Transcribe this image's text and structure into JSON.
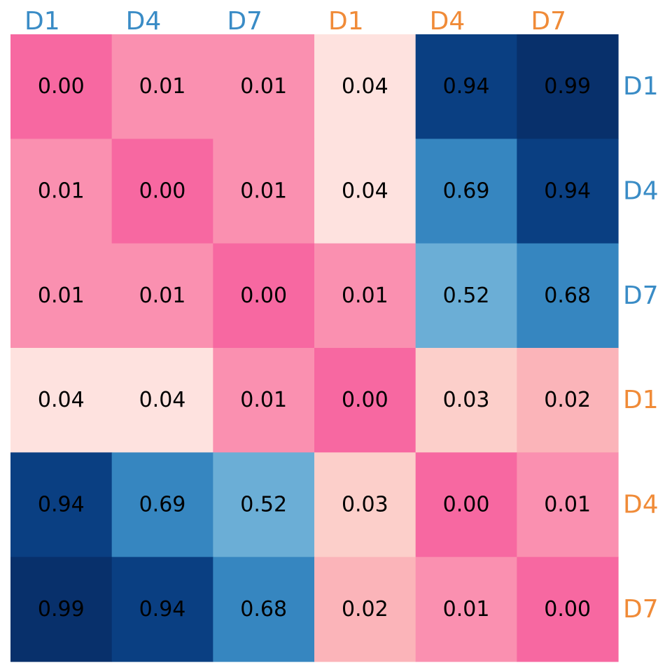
{
  "chart_data": {
    "type": "heatmap",
    "title": "",
    "xlabel": "",
    "ylabel": "",
    "col_labels": [
      {
        "text": "D1",
        "group": "blue"
      },
      {
        "text": "D4",
        "group": "blue"
      },
      {
        "text": "D7",
        "group": "blue"
      },
      {
        "text": "D1",
        "group": "orange"
      },
      {
        "text": "D4",
        "group": "orange"
      },
      {
        "text": "D7",
        "group": "orange"
      }
    ],
    "row_labels": [
      {
        "text": "D1",
        "group": "blue"
      },
      {
        "text": "D4",
        "group": "blue"
      },
      {
        "text": "D7",
        "group": "blue"
      },
      {
        "text": "D1",
        "group": "orange"
      },
      {
        "text": "D4",
        "group": "orange"
      },
      {
        "text": "D7",
        "group": "orange"
      }
    ],
    "group_colors": {
      "blue": "#3a8cc6",
      "orange": "#f08b38"
    },
    "values": [
      [
        "0.00",
        "0.01",
        "0.01",
        "0.04",
        "0.94",
        "0.99"
      ],
      [
        "0.01",
        "0.00",
        "0.01",
        "0.04",
        "0.69",
        "0.94"
      ],
      [
        "0.01",
        "0.01",
        "0.00",
        "0.01",
        "0.52",
        "0.68"
      ],
      [
        "0.04",
        "0.04",
        "0.01",
        "0.00",
        "0.03",
        "0.02"
      ],
      [
        "0.94",
        "0.69",
        "0.52",
        "0.03",
        "0.00",
        "0.01"
      ],
      [
        "0.99",
        "0.94",
        "0.68",
        "0.02",
        "0.01",
        "0.00"
      ]
    ],
    "cell_colors": [
      [
        "#f768a1",
        "#fa90b0",
        "#fa90b0",
        "#fee2df",
        "#0a3f82",
        "#08306b"
      ],
      [
        "#fa90b0",
        "#f768a1",
        "#fa90b0",
        "#fee2df",
        "#3686c0",
        "#0a3f82"
      ],
      [
        "#fa90b0",
        "#fa90b0",
        "#f768a1",
        "#fa90b0",
        "#6baed6",
        "#3686c0"
      ],
      [
        "#fee2df",
        "#fee2df",
        "#fa90b0",
        "#f768a1",
        "#fccfca",
        "#fbb4b9"
      ],
      [
        "#0a3f82",
        "#3686c0",
        "#6baed6",
        "#fccfca",
        "#f768a1",
        "#fa90b0"
      ],
      [
        "#08306b",
        "#0a3f82",
        "#3686c0",
        "#fbb4b9",
        "#fa90b0",
        "#f768a1"
      ]
    ]
  }
}
